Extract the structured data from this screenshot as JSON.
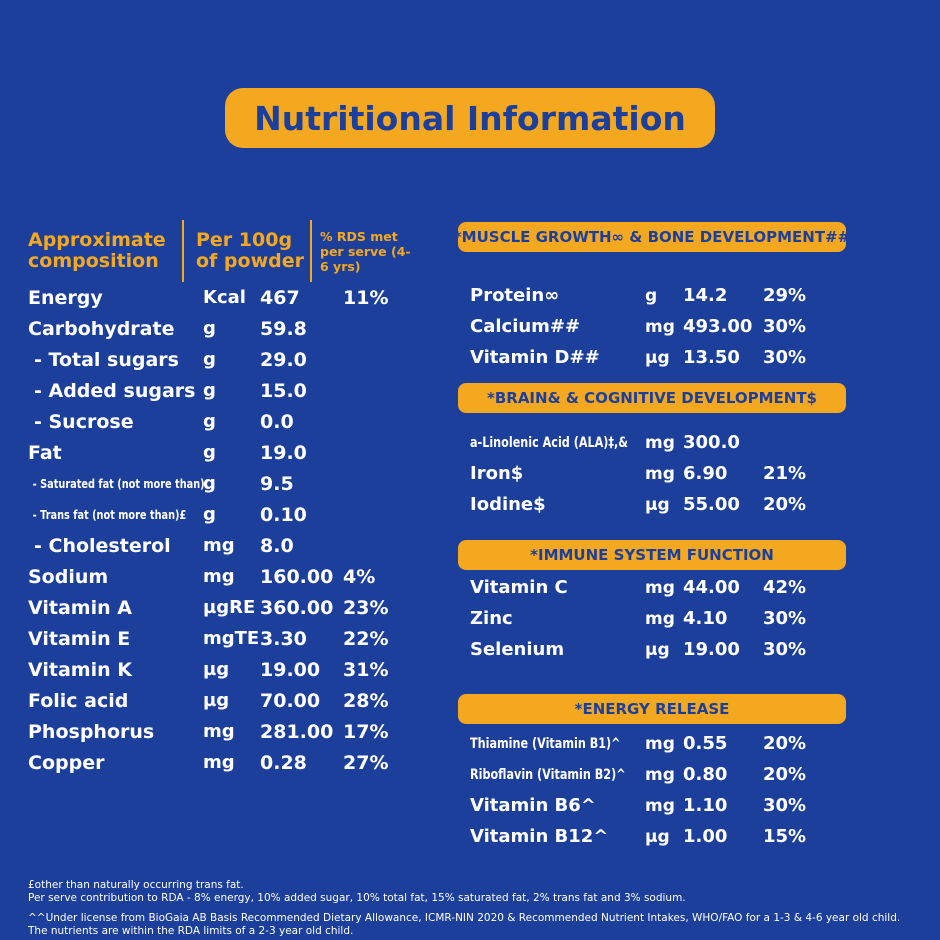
{
  "title": "Nutritional Information",
  "colors": {
    "background": "#1d3f9c",
    "accent": "#f4a81f",
    "text": "#ffffff"
  },
  "composition_table": {
    "headers": {
      "col1": "Approximate composition",
      "col2": "Per 100g of powder",
      "col3": "% RDS met per serve (4-6 yrs)"
    },
    "rows": [
      {
        "name": "Energy",
        "unit": "Kcal",
        "value": "467",
        "rds": "11%"
      },
      {
        "name": "Carbohydrate",
        "unit": "g",
        "value": "59.8",
        "rds": ""
      },
      {
        "name": "- Total sugars",
        "unit": "g",
        "value": "29.0",
        "rds": ""
      },
      {
        "name": "- Added sugars",
        "unit": "g",
        "value": "15.0",
        "rds": ""
      },
      {
        "name": "- Sucrose",
        "unit": "g",
        "value": "0.0",
        "rds": ""
      },
      {
        "name": "Fat",
        "unit": "g",
        "value": "19.0",
        "rds": ""
      },
      {
        "name": "- Saturated fat (not more than)",
        "unit": "g",
        "value": "9.5",
        "rds": ""
      },
      {
        "name": "- Trans fat (not more than)£",
        "unit": "g",
        "value": "0.10",
        "rds": ""
      },
      {
        "name": "- Cholesterol",
        "unit": "mg",
        "value": "8.0",
        "rds": ""
      },
      {
        "name": "Sodium",
        "unit": "mg",
        "value": "160.00",
        "rds": "4%"
      },
      {
        "name": "Vitamin A",
        "unit": "µgRE",
        "value": "360.00",
        "rds": "23%"
      },
      {
        "name": "Vitamin E",
        "unit": "mgTE",
        "value": "3.30",
        "rds": "22%"
      },
      {
        "name": "Vitamin K",
        "unit": "µg",
        "value": "19.00",
        "rds": "31%"
      },
      {
        "name": "Folic acid",
        "unit": "µg",
        "value": "70.00",
        "rds": "28%"
      },
      {
        "name": "Phosphorus",
        "unit": "mg",
        "value": "281.00",
        "rds": "17%"
      },
      {
        "name": "Copper",
        "unit": "mg",
        "value": "0.28",
        "rds": "27%"
      }
    ]
  },
  "sections": [
    {
      "title": "*MUSCLE GROWTH∞ & BONE DEVELOPMENT##",
      "rows": [
        {
          "name": "Protein∞",
          "unit": "g",
          "value": "14.2",
          "rds": "29%"
        },
        {
          "name": "Calcium##",
          "unit": "mg",
          "value": "493.00",
          "rds": "30%"
        },
        {
          "name": "Vitamin D##",
          "unit": "µg",
          "value": "13.50",
          "rds": "30%"
        }
      ]
    },
    {
      "title": "*BRAIN& & COGNITIVE DEVELOPMENT$",
      "rows": [
        {
          "name": "a-Linolenic Acid (ALA)‡,&",
          "unit": "mg",
          "value": "300.0",
          "rds": ""
        },
        {
          "name": "Iron$",
          "unit": "mg",
          "value": "6.90",
          "rds": "21%"
        },
        {
          "name": "Iodine$",
          "unit": "µg",
          "value": "55.00",
          "rds": "20%"
        }
      ]
    },
    {
      "title": "*IMMUNE SYSTEM FUNCTION",
      "rows": [
        {
          "name": "Vitamin C",
          "unit": "mg",
          "value": "44.00",
          "rds": "42%"
        },
        {
          "name": "Zinc",
          "unit": "mg",
          "value": "4.10",
          "rds": "30%"
        },
        {
          "name": "Selenium",
          "unit": "µg",
          "value": "19.00",
          "rds": "30%"
        }
      ]
    },
    {
      "title": "*ENERGY RELEASE",
      "rows": [
        {
          "name": "Thiamine (Vitamin B1)^",
          "unit": "mg",
          "value": "0.55",
          "rds": "20%"
        },
        {
          "name": "Riboflavin (Vitamin B2)^",
          "unit": "mg",
          "value": "0.80",
          "rds": "20%"
        },
        {
          "name": "Vitamin B6^",
          "unit": "mg",
          "value": "1.10",
          "rds": "30%"
        },
        {
          "name": "Vitamin B12^",
          "unit": "µg",
          "value": "1.00",
          "rds": "15%"
        }
      ]
    }
  ],
  "footnotes": [
    "£other than naturally occurring trans fat.",
    "Per serve contribution to RDA - 8% energy, 10% added sugar, 10% total fat,  15% saturated fat, 2% trans fat and 3% sodium.",
    "^^Under license from BioGaia AB Basis Recommended Dietary Allowance, ICMR-NIN 2020 & Recommended Nutrient Intakes, WHO/FAO for a 1-3 & 4-6 year old child. The nutrients are within the RDA limits of a 2-3 year old child."
  ]
}
